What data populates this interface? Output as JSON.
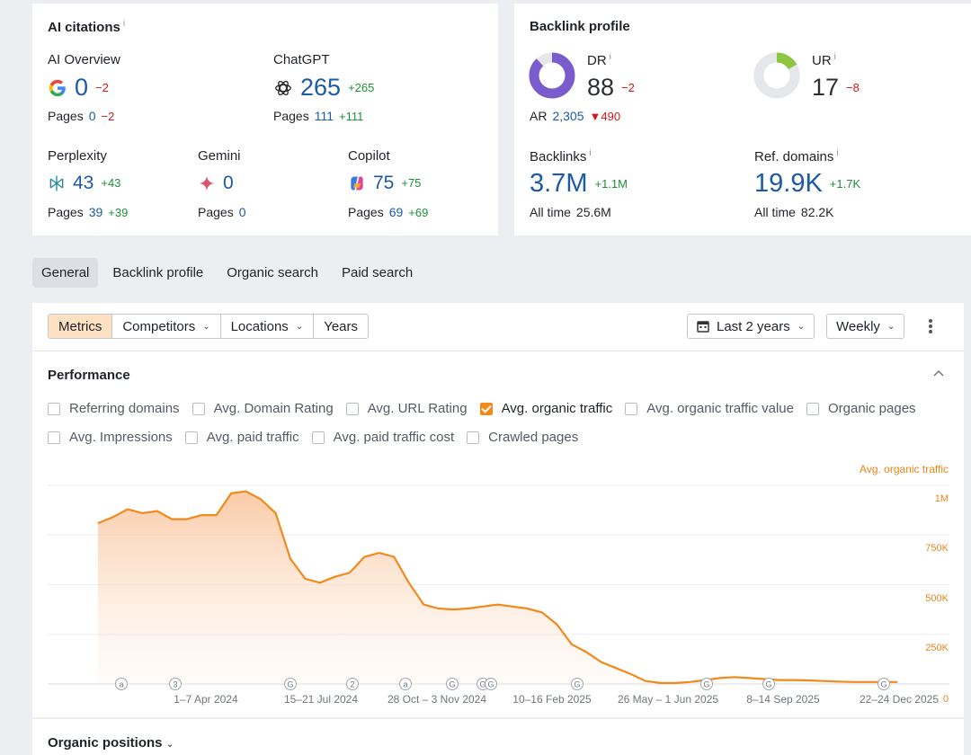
{
  "ai_citations": {
    "title": "AI citations",
    "info": "i",
    "ai_overview": {
      "label": "AI Overview",
      "value": "0",
      "delta": "−2",
      "pages_label": "Pages",
      "pages": "0",
      "pages_delta": "−2"
    },
    "chatgpt": {
      "label": "ChatGPT",
      "value": "265",
      "delta": "+265",
      "pages_label": "Pages",
      "pages": "111",
      "pages_delta": "+111"
    },
    "perplexity": {
      "label": "Perplexity",
      "value": "43",
      "delta": "+43",
      "pages_label": "Pages",
      "pages": "39",
      "pages_delta": "+39"
    },
    "gemini": {
      "label": "Gemini",
      "value": "0",
      "pages_label": "Pages",
      "pages": "0"
    },
    "copilot": {
      "label": "Copilot",
      "value": "75",
      "delta": "+75",
      "pages_label": "Pages",
      "pages": "69",
      "pages_delta": "+69"
    }
  },
  "backlink_profile": {
    "title": "Backlink profile",
    "dr": {
      "label": "DR",
      "info": "i",
      "value": "88",
      "delta": "−2",
      "ring_fraction": 0.88,
      "ring_color": "#7a5ccc"
    },
    "ar": {
      "label": "AR",
      "value": "2,305",
      "delta": "490"
    },
    "ur": {
      "label": "UR",
      "info": "i",
      "value": "17",
      "delta": "−8",
      "ring_fraction": 0.17,
      "ring_color": "#8dc63f"
    },
    "backlinks": {
      "label": "Backlinks",
      "info": "i",
      "value": "3.7M",
      "delta": "+1.1M",
      "all_time_label": "All time",
      "all_time": "25.6M"
    },
    "ref_domains": {
      "label": "Ref. domains",
      "info": "i",
      "value": "19.9K",
      "delta": "+1.7K",
      "all_time_label": "All time",
      "all_time": "82.2K"
    }
  },
  "tabs": [
    "General",
    "Backlink profile",
    "Organic search",
    "Paid search"
  ],
  "toolbar": {
    "segments": [
      "Metrics",
      "Competitors",
      "Locations",
      "Years"
    ],
    "date_range": "Last 2 years",
    "interval": "Weekly"
  },
  "performance": {
    "title": "Performance",
    "checkboxes_row1": [
      {
        "label": "Referring domains",
        "checked": false
      },
      {
        "label": "Avg. Domain Rating",
        "checked": false
      },
      {
        "label": "Avg. URL Rating",
        "checked": false
      },
      {
        "label": "Avg. organic traffic",
        "checked": true
      },
      {
        "label": "Avg. organic traffic value",
        "checked": false
      },
      {
        "label": "Organic pages",
        "checked": false
      }
    ],
    "checkboxes_row2": [
      {
        "label": "Avg. Impressions",
        "checked": false
      },
      {
        "label": "Avg. paid traffic",
        "checked": false
      },
      {
        "label": "Avg. paid traffic cost",
        "checked": false
      },
      {
        "label": "Crawled pages",
        "checked": false
      }
    ]
  },
  "chart_data": {
    "type": "area",
    "series": [
      {
        "name": "Avg. organic traffic",
        "color": "#f08a1c",
        "values": [
          810,
          840,
          880,
          860,
          870,
          830,
          830,
          850,
          850,
          960,
          970,
          930,
          860,
          630,
          530,
          510,
          540,
          560,
          640,
          660,
          640,
          510,
          400,
          380,
          375,
          380,
          390,
          400,
          390,
          380,
          360,
          300,
          200,
          160,
          110,
          80,
          50,
          15,
          5,
          5,
          10,
          20,
          30,
          35,
          30,
          25,
          20,
          20,
          18,
          15,
          12,
          10,
          10,
          10,
          10
        ]
      }
    ],
    "x_ticks": [
      "1–7 Apr 2024",
      "15–21 Jul 2024",
      "28 Oct – 3 Nov 2024",
      "10–16 Feb 2025",
      "26 May – 1 Jun 2025",
      "8–14 Sep 2025",
      "22–24 Dec 2025"
    ],
    "y_ticks": [
      "1M",
      "750K",
      "500K",
      "250K",
      "0"
    ],
    "ylim": [
      0,
      1000
    ],
    "ylabel": "Avg. organic traffic",
    "grid": true,
    "annotations": [
      "a",
      "3",
      "G",
      "2",
      "a",
      "G",
      "G",
      "G",
      "G",
      "G",
      "G",
      "G"
    ]
  },
  "organic_positions": {
    "title": "Organic positions"
  }
}
